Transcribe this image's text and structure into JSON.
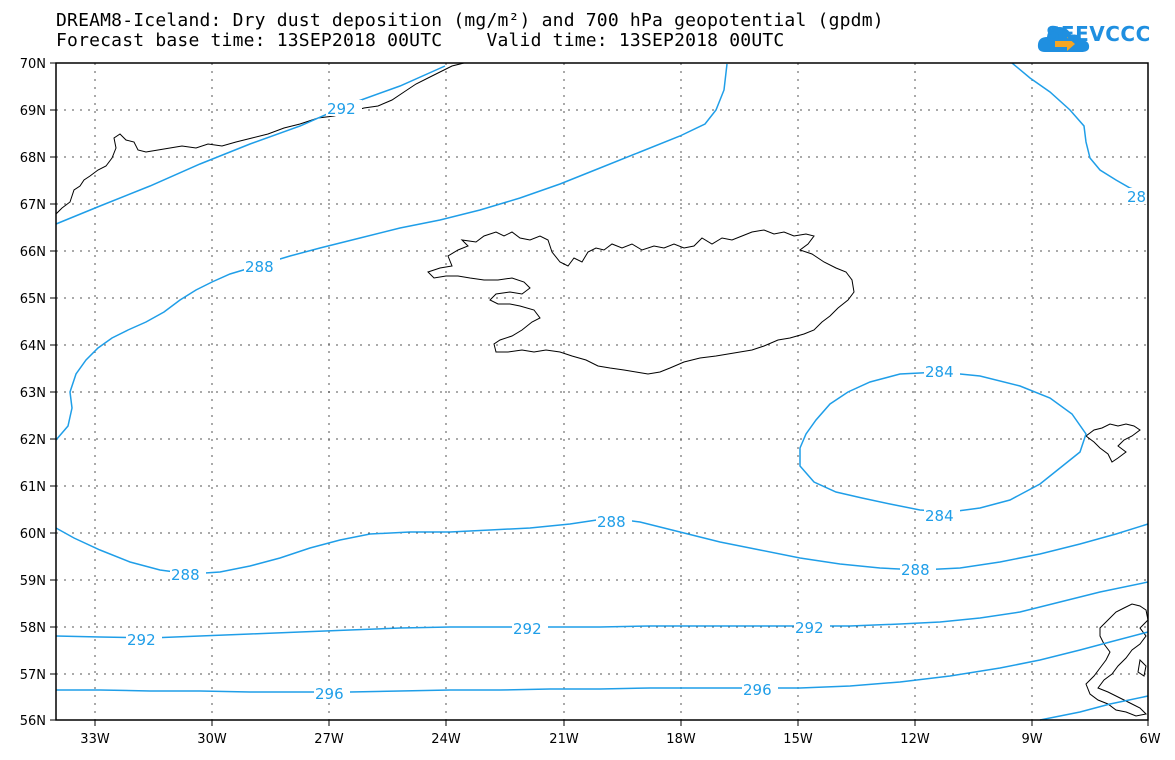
{
  "header": {
    "title_line1": "DREAM8-Iceland: Dry dust deposition (mg/m²) and 700 hPa geopotential (gpdm)",
    "title_line2": "Forecast base time: 13SEP2018 00UTC    Valid time: 13SEP2018 00UTC"
  },
  "logo": {
    "text": "SEEVCCC",
    "icon": "cloud-arrow-icon",
    "color": "#1f8fe0"
  },
  "map": {
    "longitude_labels": [
      "33W",
      "30W",
      "27W",
      "24W",
      "21W",
      "18W",
      "15W",
      "12W",
      "9W",
      "6W"
    ],
    "latitude_labels": [
      "70N",
      "69N",
      "68N",
      "67N",
      "66N",
      "65N",
      "64N",
      "63N",
      "62N",
      "61N",
      "60N",
      "59N",
      "58N",
      "57N",
      "56N"
    ],
    "contour_color": "#1f9ee8",
    "contour_labels": [
      "292",
      "288",
      "28",
      "284",
      "284",
      "288",
      "288",
      "288",
      "292",
      "292",
      "292",
      "296",
      "296"
    ]
  }
}
